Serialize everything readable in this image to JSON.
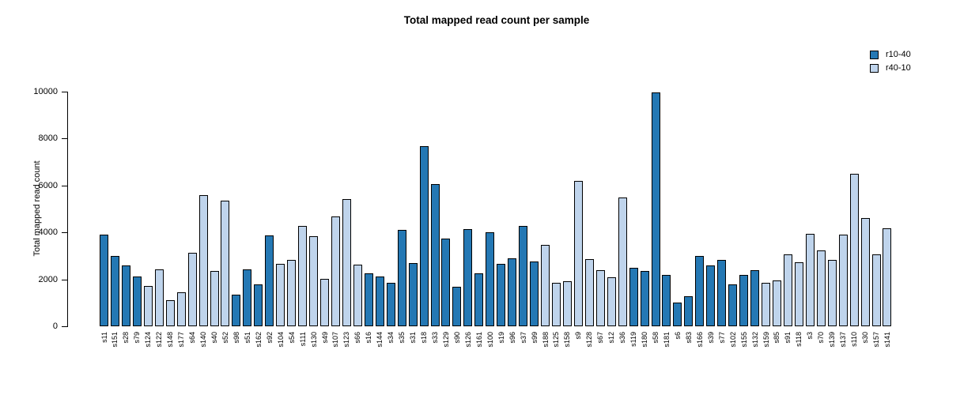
{
  "chart_data": {
    "type": "bar",
    "title": "Total mapped read count per sample",
    "xlabel": "",
    "ylabel": "Total mapped read count",
    "ylim": [
      0,
      10000
    ],
    "yticks": [
      0,
      2000,
      4000,
      6000,
      8000,
      10000
    ],
    "grid": false,
    "legend_position": "top-right",
    "bar_border_color": "#000000",
    "legend": [
      {
        "label": "r10-40",
        "color": "#2478b4"
      },
      {
        "label": "r40-10",
        "color": "#bfd4ec"
      }
    ],
    "categories": [
      "s11",
      "s151",
      "s28",
      "s79",
      "s124",
      "s122",
      "s148",
      "s177",
      "s64",
      "s140",
      "s40",
      "s52",
      "s98",
      "s51",
      "s162",
      "s92",
      "s104",
      "s54",
      "s111",
      "s130",
      "s49",
      "s107",
      "s123",
      "s66",
      "s16",
      "s144",
      "s34",
      "s35",
      "s31",
      "s18",
      "s33",
      "s129",
      "s90",
      "s126",
      "s161",
      "s100",
      "s19",
      "s96",
      "s37",
      "s99",
      "s188",
      "s125",
      "s158",
      "s9",
      "s128",
      "s67",
      "s12",
      "s36",
      "s119",
      "s180",
      "s58",
      "s181",
      "s6",
      "s83",
      "s166",
      "s39",
      "s77",
      "s102",
      "s155",
      "s132",
      "s159",
      "s85",
      "s91",
      "s118",
      "s3",
      "s70",
      "s139",
      "s137",
      "s110",
      "s30",
      "s157",
      "s141"
    ],
    "values": [
      3900,
      3000,
      2590,
      2120,
      1730,
      2420,
      1110,
      1450,
      3130,
      5600,
      2350,
      5350,
      1360,
      2430,
      1770,
      3870,
      2650,
      2820,
      4290,
      3830,
      2010,
      4680,
      5410,
      2640,
      2270,
      2120,
      1840,
      4110,
      2680,
      7680,
      6050,
      3740,
      1690,
      4140,
      2260,
      4000,
      2650,
      2880,
      4290,
      2770,
      3470,
      1840,
      1920,
      6180,
      2850,
      2380,
      2100,
      5500,
      2490,
      2350,
      9950,
      2180,
      1000,
      1280,
      2990,
      2600,
      2820,
      1780,
      2180,
      2400,
      1840,
      1950,
      3050,
      2720,
      3950,
      3240,
      2820,
      3920,
      6500,
      4610,
      3050,
      4160
    ],
    "groups": [
      "r10-40",
      "r10-40",
      "r10-40",
      "r10-40",
      "r40-10",
      "r40-10",
      "r40-10",
      "r40-10",
      "r40-10",
      "r40-10",
      "r40-10",
      "r40-10",
      "r10-40",
      "r10-40",
      "r10-40",
      "r10-40",
      "r40-10",
      "r40-10",
      "r40-10",
      "r40-10",
      "r40-10",
      "r40-10",
      "r40-10",
      "r40-10",
      "r10-40",
      "r10-40",
      "r10-40",
      "r10-40",
      "r10-40",
      "r10-40",
      "r10-40",
      "r10-40",
      "r10-40",
      "r10-40",
      "r10-40",
      "r10-40",
      "r10-40",
      "r10-40",
      "r10-40",
      "r10-40",
      "r40-10",
      "r40-10",
      "r40-10",
      "r40-10",
      "r40-10",
      "r40-10",
      "r40-10",
      "r40-10",
      "r10-40",
      "r10-40",
      "r10-40",
      "r10-40",
      "r10-40",
      "r10-40",
      "r10-40",
      "r10-40",
      "r10-40",
      "r10-40",
      "r10-40",
      "r10-40",
      "r40-10",
      "r40-10",
      "r40-10",
      "r40-10",
      "r40-10",
      "r40-10",
      "r40-10",
      "r40-10",
      "r40-10",
      "r40-10",
      "r40-10",
      "r40-10"
    ]
  }
}
